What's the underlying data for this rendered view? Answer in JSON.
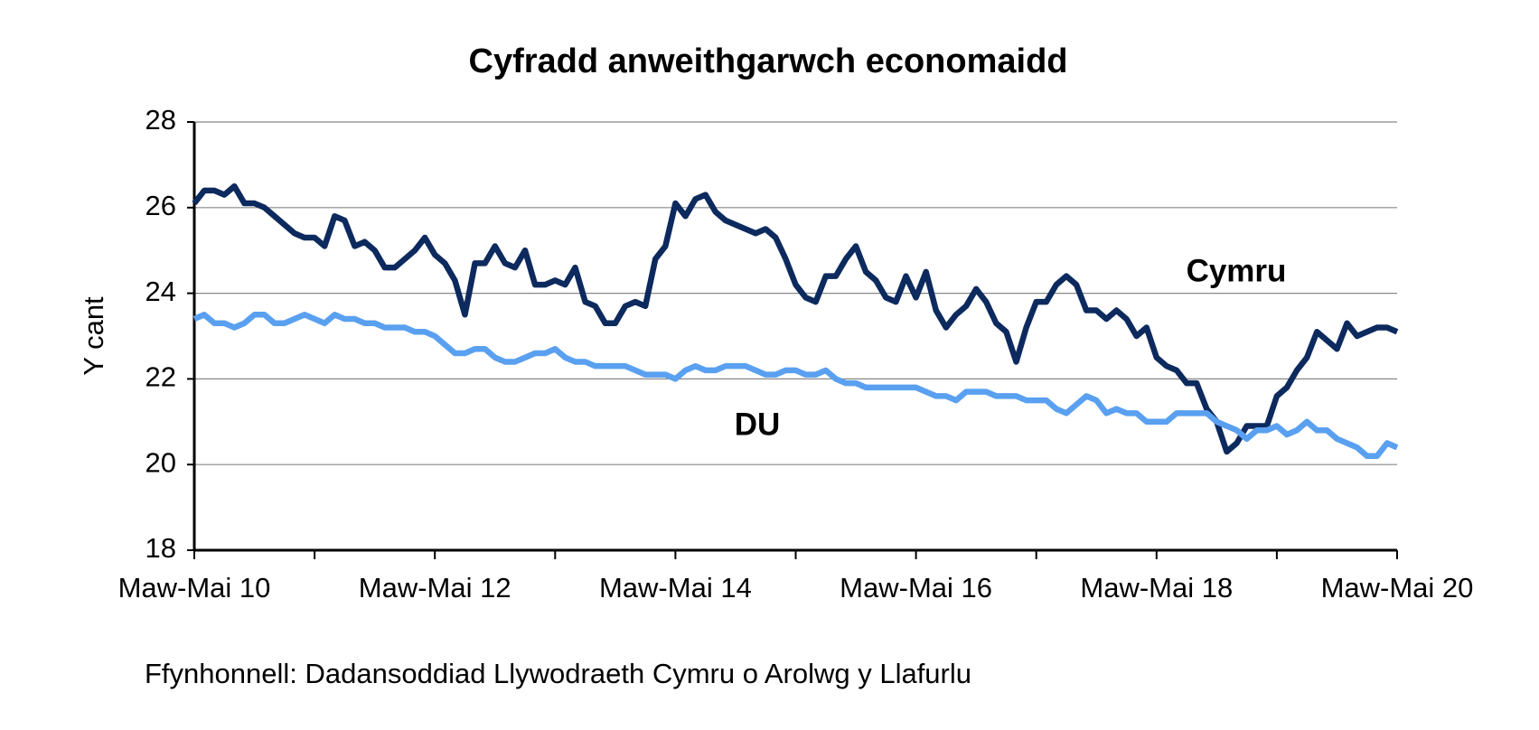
{
  "chart_data": {
    "type": "line",
    "title": "Cyfradd anweithgarwch economaidd",
    "y_label": "Y cant",
    "source": "Ffynhonnell: Dadansoddiad Llywodraeth Cymru o Arolwg y Llafurlu",
    "categories": [
      "Maw-Mai 10",
      null,
      null,
      null,
      null,
      null,
      null,
      null,
      null,
      null,
      null,
      null,
      null,
      null,
      null,
      null,
      null,
      null,
      null,
      null,
      null,
      null,
      null,
      null,
      "Maw-Mai 12",
      null,
      null,
      null,
      null,
      null,
      null,
      null,
      null,
      null,
      null,
      null,
      null,
      null,
      null,
      null,
      null,
      null,
      null,
      null,
      null,
      null,
      null,
      null,
      "Maw-Mai 14",
      null,
      null,
      null,
      null,
      null,
      null,
      null,
      null,
      null,
      null,
      null,
      null,
      null,
      null,
      null,
      null,
      null,
      null,
      null,
      null,
      null,
      null,
      null,
      "Maw-Mai 16",
      null,
      null,
      null,
      null,
      null,
      null,
      null,
      null,
      null,
      null,
      null,
      null,
      null,
      null,
      null,
      null,
      null,
      null,
      null,
      null,
      null,
      null,
      null,
      "Maw-Mai 18",
      null,
      null,
      null,
      null,
      null,
      null,
      null,
      null,
      null,
      null,
      null,
      null,
      null,
      null,
      null,
      null,
      null,
      null,
      null,
      null,
      null,
      null,
      null,
      "Maw-Mai 20"
    ],
    "series": [
      {
        "name": "Cymru",
        "color": "#0d2a5e",
        "values": [
          26.1,
          26.4,
          26.4,
          26.3,
          26.5,
          26.1,
          26.1,
          26.0,
          25.8,
          25.6,
          25.4,
          25.3,
          25.3,
          25.1,
          25.8,
          25.7,
          25.1,
          25.2,
          25.0,
          24.6,
          24.6,
          24.8,
          25.0,
          25.3,
          24.9,
          24.7,
          24.3,
          23.5,
          24.7,
          24.7,
          25.1,
          24.7,
          24.6,
          25.0,
          24.2,
          24.2,
          24.3,
          24.2,
          24.6,
          23.8,
          23.7,
          23.3,
          23.3,
          23.7,
          23.8,
          23.7,
          24.8,
          25.1,
          26.1,
          25.8,
          26.2,
          26.3,
          25.9,
          25.7,
          25.6,
          25.5,
          25.4,
          25.5,
          25.3,
          24.8,
          24.2,
          23.9,
          23.8,
          24.4,
          24.4,
          24.8,
          25.1,
          24.5,
          24.3,
          23.9,
          23.8,
          24.4,
          23.9,
          24.5,
          23.6,
          23.2,
          23.5,
          23.7,
          24.1,
          23.8,
          23.3,
          23.1,
          22.4,
          23.2,
          23.8,
          23.8,
          24.2,
          24.4,
          24.2,
          23.6,
          23.6,
          23.4,
          23.6,
          23.4,
          23.0,
          23.2,
          22.5,
          22.3,
          22.2,
          21.9,
          21.9,
          21.3,
          21.0,
          20.3,
          20.5,
          20.9,
          20.9,
          20.9,
          21.6,
          21.8,
          22.2,
          22.5,
          23.1,
          22.9,
          22.7,
          23.3,
          23.0,
          23.1,
          23.2,
          23.2,
          23.1
        ]
      },
      {
        "name": "DU",
        "color": "#5aa0f0",
        "values": [
          23.4,
          23.5,
          23.3,
          23.3,
          23.2,
          23.3,
          23.5,
          23.5,
          23.3,
          23.3,
          23.4,
          23.5,
          23.4,
          23.3,
          23.5,
          23.4,
          23.4,
          23.3,
          23.3,
          23.2,
          23.2,
          23.2,
          23.1,
          23.1,
          23.0,
          22.8,
          22.6,
          22.6,
          22.7,
          22.7,
          22.5,
          22.4,
          22.4,
          22.5,
          22.6,
          22.6,
          22.7,
          22.5,
          22.4,
          22.4,
          22.3,
          22.3,
          22.3,
          22.3,
          22.2,
          22.1,
          22.1,
          22.1,
          22.0,
          22.2,
          22.3,
          22.2,
          22.2,
          22.3,
          22.3,
          22.3,
          22.2,
          22.1,
          22.1,
          22.2,
          22.2,
          22.1,
          22.1,
          22.2,
          22.0,
          21.9,
          21.9,
          21.8,
          21.8,
          21.8,
          21.8,
          21.8,
          21.8,
          21.7,
          21.6,
          21.6,
          21.5,
          21.7,
          21.7,
          21.7,
          21.6,
          21.6,
          21.6,
          21.5,
          21.5,
          21.5,
          21.3,
          21.2,
          21.4,
          21.6,
          21.5,
          21.2,
          21.3,
          21.2,
          21.2,
          21.0,
          21.0,
          21.0,
          21.2,
          21.2,
          21.2,
          21.2,
          21.0,
          20.9,
          20.8,
          20.6,
          20.8,
          20.8,
          20.9,
          20.7,
          20.8,
          21.0,
          20.8,
          20.8,
          20.6,
          20.5,
          20.4,
          20.2,
          20.2,
          20.5,
          20.4
        ]
      }
    ],
    "ylim": [
      18,
      28
    ],
    "yticks": [
      18,
      20,
      22,
      24,
      26,
      28
    ],
    "grid": true
  }
}
